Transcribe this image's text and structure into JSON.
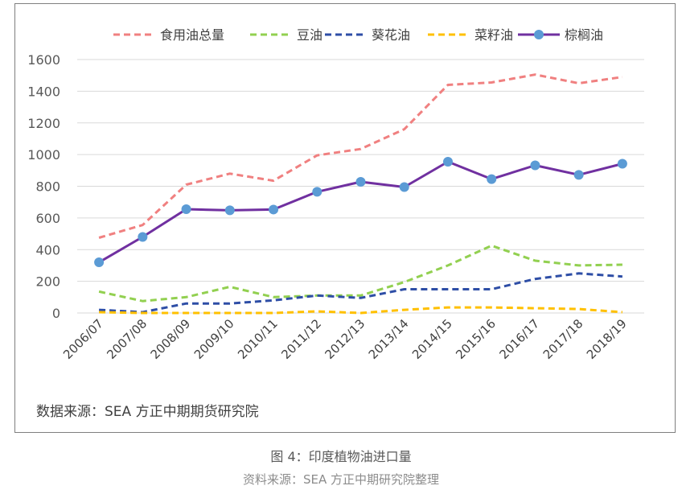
{
  "chart_data": {
    "type": "line",
    "title": "",
    "xlabel": "",
    "ylabel": "",
    "ylim": [
      0,
      1600
    ],
    "yticks": [
      0,
      200,
      400,
      600,
      800,
      1000,
      1200,
      1400,
      1600
    ],
    "grid": true,
    "legend_position": "top",
    "categories": [
      "2006/07",
      "2007/08",
      "2008/09",
      "2009/10",
      "2010/11",
      "2011/12",
      "2012/13",
      "2013/14",
      "2014/15",
      "2015/16",
      "2016/17",
      "2017/18",
      "2018/19"
    ],
    "series": [
      {
        "name": "食用油总量",
        "style": "dashed",
        "color": "#f08080",
        "markers": false,
        "values": [
          475,
          555,
          810,
          880,
          835,
          995,
          1035,
          1160,
          1440,
          1455,
          1505,
          1450,
          1490
        ]
      },
      {
        "name": "豆油",
        "style": "dashed",
        "color": "#92d050",
        "markers": false,
        "values": [
          135,
          75,
          100,
          165,
          100,
          110,
          110,
          195,
          300,
          425,
          330,
          300,
          305
        ]
      },
      {
        "name": "葵花油",
        "style": "dashed",
        "color": "#2e4ea6",
        "markers": false,
        "values": [
          20,
          5,
          60,
          60,
          80,
          110,
          95,
          150,
          150,
          150,
          215,
          250,
          230
        ]
      },
      {
        "name": "菜籽油",
        "style": "dashed",
        "color": "#ffc000",
        "markers": false,
        "values": [
          5,
          0,
          0,
          0,
          0,
          10,
          0,
          20,
          35,
          35,
          30,
          25,
          5
        ]
      },
      {
        "name": "棕榈油",
        "style": "solid",
        "color": "#7030a0",
        "marker_color": "#5b9bd5",
        "markers": true,
        "values": [
          320,
          480,
          655,
          648,
          653,
          765,
          828,
          795,
          955,
          845,
          932,
          872,
          942
        ]
      }
    ]
  },
  "source_note": "数据来源：SEA 方正中期期货研究院",
  "figure_caption": "图 4：印度植物油进口量",
  "source_caption": "资料来源：SEA 方正中期研究院整理"
}
